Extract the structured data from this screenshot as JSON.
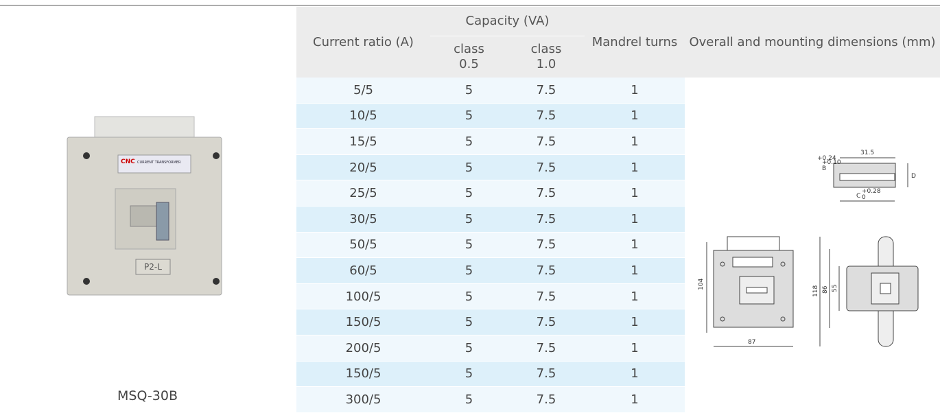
{
  "product": {
    "caption": "MSQ-30B",
    "brand": "CNC",
    "label": "CURRENT TRANSFORMER",
    "terminal": "P2-L"
  },
  "table": {
    "headers": {
      "current_ratio": "Current ratio (A)",
      "capacity": "Capacity (VA)",
      "class_05": "class 0.5",
      "class_10": "class 1.0",
      "mandrel": "Mandrel turns",
      "dimensions": "Overall and mounting dimensions (mm)"
    },
    "rows": [
      [
        "5/5",
        5,
        7.5,
        1
      ],
      [
        "10/5",
        5,
        7.5,
        1
      ],
      [
        "15/5",
        5,
        7.5,
        1
      ],
      [
        "20/5",
        5,
        7.5,
        1
      ],
      [
        "25/5",
        5,
        7.5,
        1
      ],
      [
        "30/5",
        5,
        7.5,
        1
      ],
      [
        "50/5",
        5,
        7.5,
        1
      ],
      [
        "60/5",
        5,
        7.5,
        1
      ],
      [
        "100/5",
        5,
        7.5,
        1
      ],
      [
        "150/5",
        5,
        7.5,
        1
      ],
      [
        "200/5",
        5,
        7.5,
        1
      ],
      [
        "150/5",
        5,
        7.5,
        1
      ],
      [
        "300/5",
        5,
        7.5,
        1
      ]
    ]
  },
  "dimensions": {
    "width_top": "31.5",
    "b": "B",
    "b_tol_upper": "+0.24",
    "b_tol_lower": "+0.10",
    "d": "D",
    "c": "C",
    "c_tol_upper": "+0.28",
    "c_tol_lower": "0",
    "height_front": "104",
    "width_front": "87",
    "height_side": "118",
    "side_mid": "86",
    "side_inner": "55"
  }
}
